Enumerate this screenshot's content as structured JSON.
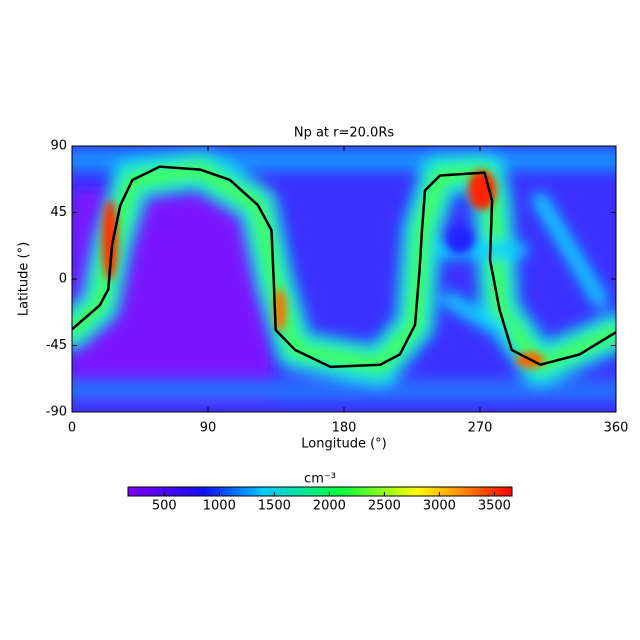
{
  "chart_data": {
    "type": "line",
    "title": "Np at r=20.0Rs",
    "x_label": "Longitude (°)",
    "y_label": "Latitude (°)",
    "xlim": [
      0,
      360
    ],
    "ylim": [
      -90,
      90
    ],
    "xticks": [
      0,
      90,
      180,
      270,
      360
    ],
    "yticks": [
      -90,
      -45,
      0,
      45,
      90
    ],
    "series": [
      {
        "color": "#000000",
        "x": [
          0,
          18.5,
          24,
          26.5,
          32,
          40,
          58,
          85,
          104.5,
          123,
          132,
          133.5,
          134.8,
          147.6,
          171,
          204,
          217,
          227,
          230,
          231.6,
          233.6,
          243.5,
          273,
          278,
          276.6,
          283,
          291,
          310,
          336,
          360
        ],
        "values": [
          -34,
          -17.6,
          -7,
          23,
          50,
          67,
          76,
          74,
          67,
          50,
          33,
          -1,
          -34.5,
          -48,
          -59.5,
          -58,
          -51,
          -31,
          6,
          33,
          60,
          70,
          72,
          53,
          13,
          -21,
          -48,
          -58,
          -51,
          -36
        ]
      }
    ],
    "colorbar": {
      "label": "cm⁻³",
      "clim": [
        170,
        3660
      ],
      "ticks": [
        500,
        1000,
        1500,
        2000,
        2500,
        3000,
        3500
      ]
    }
  }
}
